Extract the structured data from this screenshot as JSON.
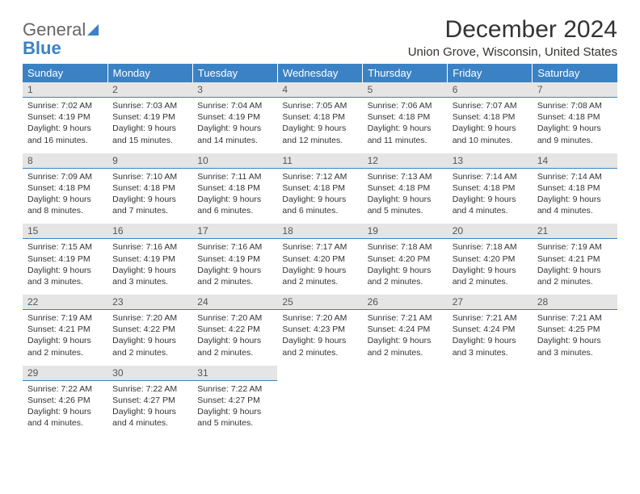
{
  "logo": {
    "text1": "General",
    "text2": "Blue"
  },
  "title": "December 2024",
  "location": "Union Grove, Wisconsin, United States",
  "colors": {
    "header_bg": "#3b82c4",
    "header_text": "#ffffff",
    "daynum_bg": "#e5e5e5",
    "daynum_border": "#3b82c4",
    "body_text": "#333333",
    "page_bg": "#ffffff"
  },
  "typography": {
    "title_fontsize": 30,
    "location_fontsize": 15,
    "dayheader_fontsize": 13,
    "daynum_fontsize": 12,
    "body_fontsize": 10.5
  },
  "day_headers": [
    "Sunday",
    "Monday",
    "Tuesday",
    "Wednesday",
    "Thursday",
    "Friday",
    "Saturday"
  ],
  "weeks": [
    [
      {
        "n": "1",
        "sunrise": "Sunrise: 7:02 AM",
        "sunset": "Sunset: 4:19 PM",
        "day1": "Daylight: 9 hours",
        "day2": "and 16 minutes."
      },
      {
        "n": "2",
        "sunrise": "Sunrise: 7:03 AM",
        "sunset": "Sunset: 4:19 PM",
        "day1": "Daylight: 9 hours",
        "day2": "and 15 minutes."
      },
      {
        "n": "3",
        "sunrise": "Sunrise: 7:04 AM",
        "sunset": "Sunset: 4:19 PM",
        "day1": "Daylight: 9 hours",
        "day2": "and 14 minutes."
      },
      {
        "n": "4",
        "sunrise": "Sunrise: 7:05 AM",
        "sunset": "Sunset: 4:18 PM",
        "day1": "Daylight: 9 hours",
        "day2": "and 12 minutes."
      },
      {
        "n": "5",
        "sunrise": "Sunrise: 7:06 AM",
        "sunset": "Sunset: 4:18 PM",
        "day1": "Daylight: 9 hours",
        "day2": "and 11 minutes."
      },
      {
        "n": "6",
        "sunrise": "Sunrise: 7:07 AM",
        "sunset": "Sunset: 4:18 PM",
        "day1": "Daylight: 9 hours",
        "day2": "and 10 minutes."
      },
      {
        "n": "7",
        "sunrise": "Sunrise: 7:08 AM",
        "sunset": "Sunset: 4:18 PM",
        "day1": "Daylight: 9 hours",
        "day2": "and 9 minutes."
      }
    ],
    [
      {
        "n": "8",
        "sunrise": "Sunrise: 7:09 AM",
        "sunset": "Sunset: 4:18 PM",
        "day1": "Daylight: 9 hours",
        "day2": "and 8 minutes."
      },
      {
        "n": "9",
        "sunrise": "Sunrise: 7:10 AM",
        "sunset": "Sunset: 4:18 PM",
        "day1": "Daylight: 9 hours",
        "day2": "and 7 minutes."
      },
      {
        "n": "10",
        "sunrise": "Sunrise: 7:11 AM",
        "sunset": "Sunset: 4:18 PM",
        "day1": "Daylight: 9 hours",
        "day2": "and 6 minutes."
      },
      {
        "n": "11",
        "sunrise": "Sunrise: 7:12 AM",
        "sunset": "Sunset: 4:18 PM",
        "day1": "Daylight: 9 hours",
        "day2": "and 6 minutes."
      },
      {
        "n": "12",
        "sunrise": "Sunrise: 7:13 AM",
        "sunset": "Sunset: 4:18 PM",
        "day1": "Daylight: 9 hours",
        "day2": "and 5 minutes."
      },
      {
        "n": "13",
        "sunrise": "Sunrise: 7:14 AM",
        "sunset": "Sunset: 4:18 PM",
        "day1": "Daylight: 9 hours",
        "day2": "and 4 minutes."
      },
      {
        "n": "14",
        "sunrise": "Sunrise: 7:14 AM",
        "sunset": "Sunset: 4:18 PM",
        "day1": "Daylight: 9 hours",
        "day2": "and 4 minutes."
      }
    ],
    [
      {
        "n": "15",
        "sunrise": "Sunrise: 7:15 AM",
        "sunset": "Sunset: 4:19 PM",
        "day1": "Daylight: 9 hours",
        "day2": "and 3 minutes."
      },
      {
        "n": "16",
        "sunrise": "Sunrise: 7:16 AM",
        "sunset": "Sunset: 4:19 PM",
        "day1": "Daylight: 9 hours",
        "day2": "and 3 minutes."
      },
      {
        "n": "17",
        "sunrise": "Sunrise: 7:16 AM",
        "sunset": "Sunset: 4:19 PM",
        "day1": "Daylight: 9 hours",
        "day2": "and 2 minutes."
      },
      {
        "n": "18",
        "sunrise": "Sunrise: 7:17 AM",
        "sunset": "Sunset: 4:20 PM",
        "day1": "Daylight: 9 hours",
        "day2": "and 2 minutes."
      },
      {
        "n": "19",
        "sunrise": "Sunrise: 7:18 AM",
        "sunset": "Sunset: 4:20 PM",
        "day1": "Daylight: 9 hours",
        "day2": "and 2 minutes."
      },
      {
        "n": "20",
        "sunrise": "Sunrise: 7:18 AM",
        "sunset": "Sunset: 4:20 PM",
        "day1": "Daylight: 9 hours",
        "day2": "and 2 minutes."
      },
      {
        "n": "21",
        "sunrise": "Sunrise: 7:19 AM",
        "sunset": "Sunset: 4:21 PM",
        "day1": "Daylight: 9 hours",
        "day2": "and 2 minutes."
      }
    ],
    [
      {
        "n": "22",
        "sunrise": "Sunrise: 7:19 AM",
        "sunset": "Sunset: 4:21 PM",
        "day1": "Daylight: 9 hours",
        "day2": "and 2 minutes."
      },
      {
        "n": "23",
        "sunrise": "Sunrise: 7:20 AM",
        "sunset": "Sunset: 4:22 PM",
        "day1": "Daylight: 9 hours",
        "day2": "and 2 minutes."
      },
      {
        "n": "24",
        "sunrise": "Sunrise: 7:20 AM",
        "sunset": "Sunset: 4:22 PM",
        "day1": "Daylight: 9 hours",
        "day2": "and 2 minutes."
      },
      {
        "n": "25",
        "sunrise": "Sunrise: 7:20 AM",
        "sunset": "Sunset: 4:23 PM",
        "day1": "Daylight: 9 hours",
        "day2": "and 2 minutes."
      },
      {
        "n": "26",
        "sunrise": "Sunrise: 7:21 AM",
        "sunset": "Sunset: 4:24 PM",
        "day1": "Daylight: 9 hours",
        "day2": "and 2 minutes."
      },
      {
        "n": "27",
        "sunrise": "Sunrise: 7:21 AM",
        "sunset": "Sunset: 4:24 PM",
        "day1": "Daylight: 9 hours",
        "day2": "and 3 minutes."
      },
      {
        "n": "28",
        "sunrise": "Sunrise: 7:21 AM",
        "sunset": "Sunset: 4:25 PM",
        "day1": "Daylight: 9 hours",
        "day2": "and 3 minutes."
      }
    ],
    [
      {
        "n": "29",
        "sunrise": "Sunrise: 7:22 AM",
        "sunset": "Sunset: 4:26 PM",
        "day1": "Daylight: 9 hours",
        "day2": "and 4 minutes."
      },
      {
        "n": "30",
        "sunrise": "Sunrise: 7:22 AM",
        "sunset": "Sunset: 4:27 PM",
        "day1": "Daylight: 9 hours",
        "day2": "and 4 minutes."
      },
      {
        "n": "31",
        "sunrise": "Sunrise: 7:22 AM",
        "sunset": "Sunset: 4:27 PM",
        "day1": "Daylight: 9 hours",
        "day2": "and 5 minutes."
      },
      null,
      null,
      null,
      null
    ]
  ]
}
